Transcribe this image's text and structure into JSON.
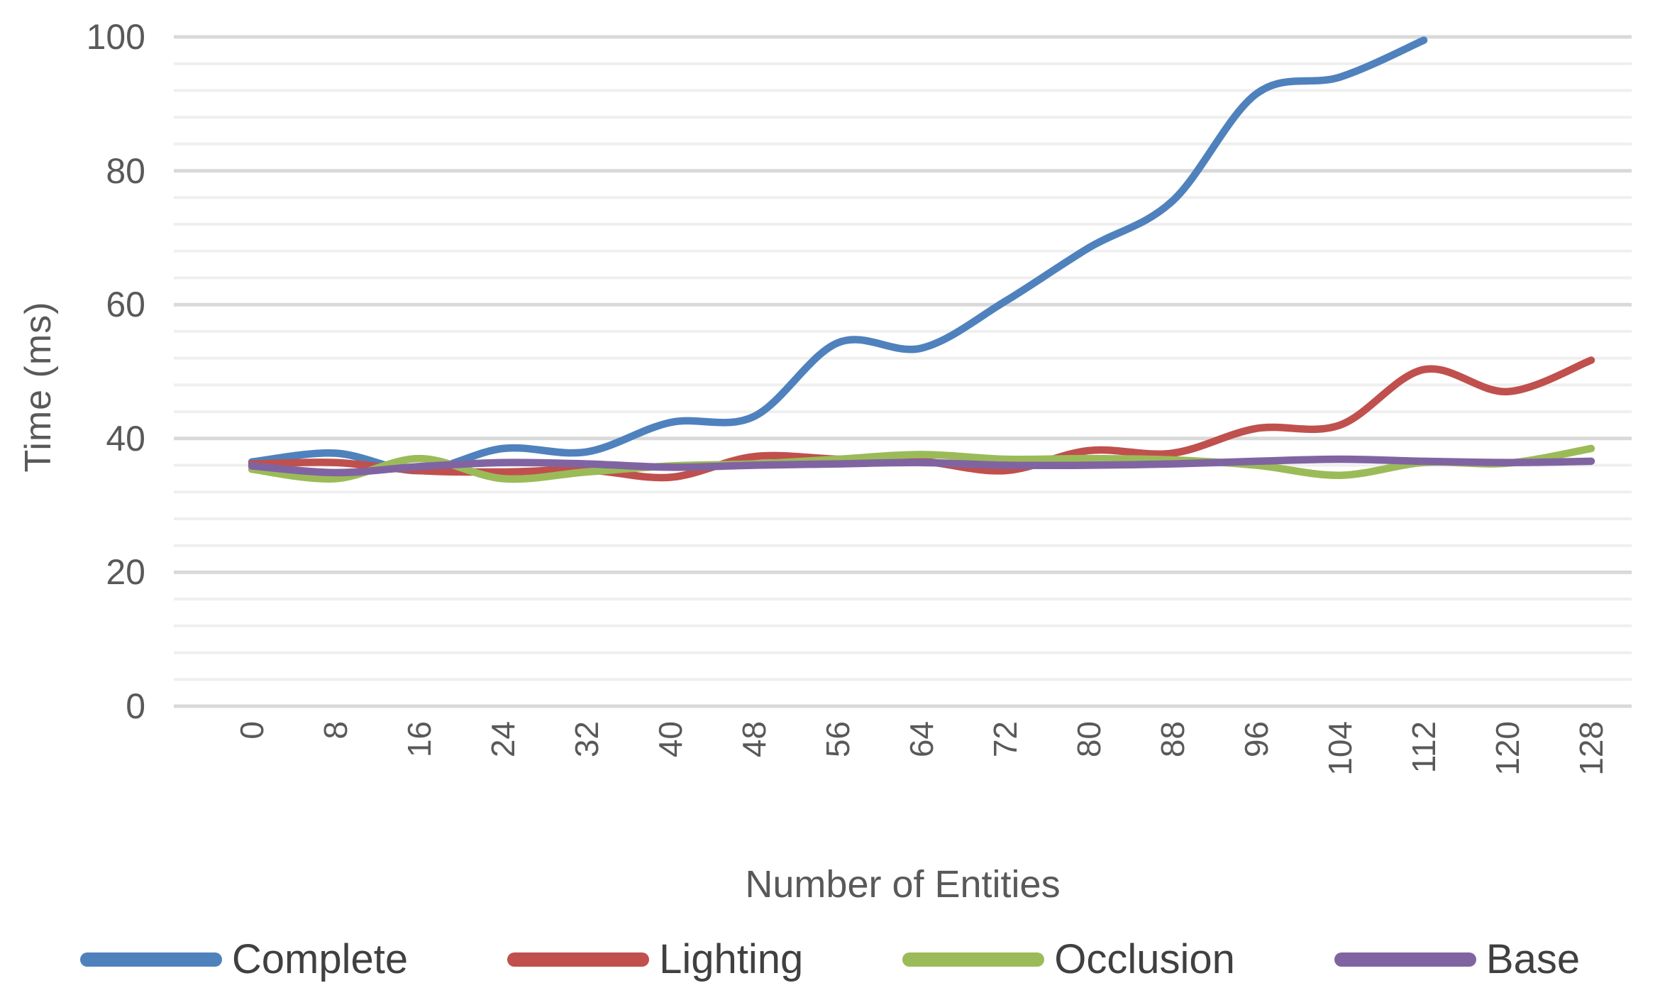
{
  "chart_data": {
    "type": "line",
    "title": "",
    "xlabel": "Number of Entities",
    "ylabel": "Time (ms)",
    "x": [
      0,
      8,
      16,
      24,
      32,
      40,
      48,
      56,
      64,
      72,
      80,
      88,
      96,
      104,
      112,
      120,
      128
    ],
    "xlim": [
      0,
      128
    ],
    "ylim": [
      0,
      100
    ],
    "y_major_ticks": [
      0,
      20,
      40,
      60,
      80,
      100
    ],
    "y_minor_step": 4,
    "grid": "horizontal-major-and-minor",
    "legend_position": "bottom",
    "colors": {
      "major_gridline": "#d9d9d9",
      "minor_gridline": "#efefef",
      "axis_text": "#595959",
      "legend_text": "#404040"
    },
    "series": [
      {
        "name": "Complete",
        "color": "#4F81BD",
        "values": [
          36.5,
          37.8,
          35.2,
          38.5,
          38.0,
          42.4,
          43.3,
          54.3,
          53.5,
          60.5,
          68.5,
          75.5,
          91.5,
          94.0,
          99.5,
          null,
          null
        ]
      },
      {
        "name": "Lighting",
        "color": "#C0504D",
        "values": [
          36.2,
          36.4,
          35.2,
          35.0,
          35.3,
          34.2,
          37.3,
          36.9,
          36.6,
          35.2,
          38.2,
          37.8,
          41.5,
          42.0,
          50.3,
          47.0,
          51.7
        ]
      },
      {
        "name": "Occlusion",
        "color": "#9BBB59",
        "values": [
          35.4,
          34.0,
          37.0,
          34.0,
          35.0,
          35.9,
          36.2,
          36.9,
          37.6,
          36.9,
          37.0,
          36.8,
          36.0,
          34.5,
          36.4,
          36.3,
          38.5
        ]
      },
      {
        "name": "Base",
        "color": "#8064A2",
        "values": [
          35.9,
          34.9,
          35.8,
          36.4,
          36.2,
          35.7,
          36.0,
          36.2,
          36.4,
          36.0,
          36.0,
          36.2,
          36.6,
          36.9,
          36.6,
          36.4,
          36.6
        ]
      }
    ]
  }
}
